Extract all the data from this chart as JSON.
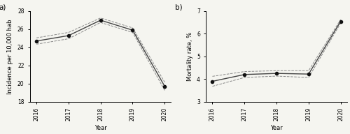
{
  "years": [
    2016,
    2017,
    2018,
    2019,
    2020
  ],
  "panel_a": {
    "main": [
      24.7,
      25.3,
      27.0,
      25.9,
      19.7
    ],
    "ci_upper": [
      25.05,
      25.65,
      27.25,
      26.15,
      20.15
    ],
    "ci_lower": [
      24.35,
      24.95,
      26.75,
      25.65,
      19.25
    ],
    "ylabel": "Incidence per 10,000 hab",
    "ylim": [
      18,
      28
    ],
    "yticks": [
      18,
      20,
      22,
      24,
      26,
      28
    ],
    "xlabel": "Year",
    "label": "a)"
  },
  "panel_b": {
    "main": [
      3.9,
      4.2,
      4.25,
      4.22,
      6.55
    ],
    "ci_upper": [
      4.12,
      4.33,
      4.37,
      4.37,
      6.63
    ],
    "ci_lower": [
      3.68,
      4.07,
      4.13,
      4.07,
      6.47
    ],
    "ylabel": "Mortality rate, %",
    "ylim": [
      3,
      7
    ],
    "yticks": [
      3,
      4,
      5,
      6,
      7
    ],
    "xlabel": "Year",
    "label": "b)"
  },
  "line_color": "#444444",
  "ci_color": "#888888",
  "marker": "o",
  "marker_size": 3.0,
  "marker_color": "#111111",
  "line_width": 1.0,
  "ci_linewidth": 0.7,
  "ci_linestyle": "--",
  "background_color": "#f5f5f0",
  "tick_fontsize": 5.5,
  "label_fontsize": 6.0,
  "panel_label_fontsize": 7.5
}
